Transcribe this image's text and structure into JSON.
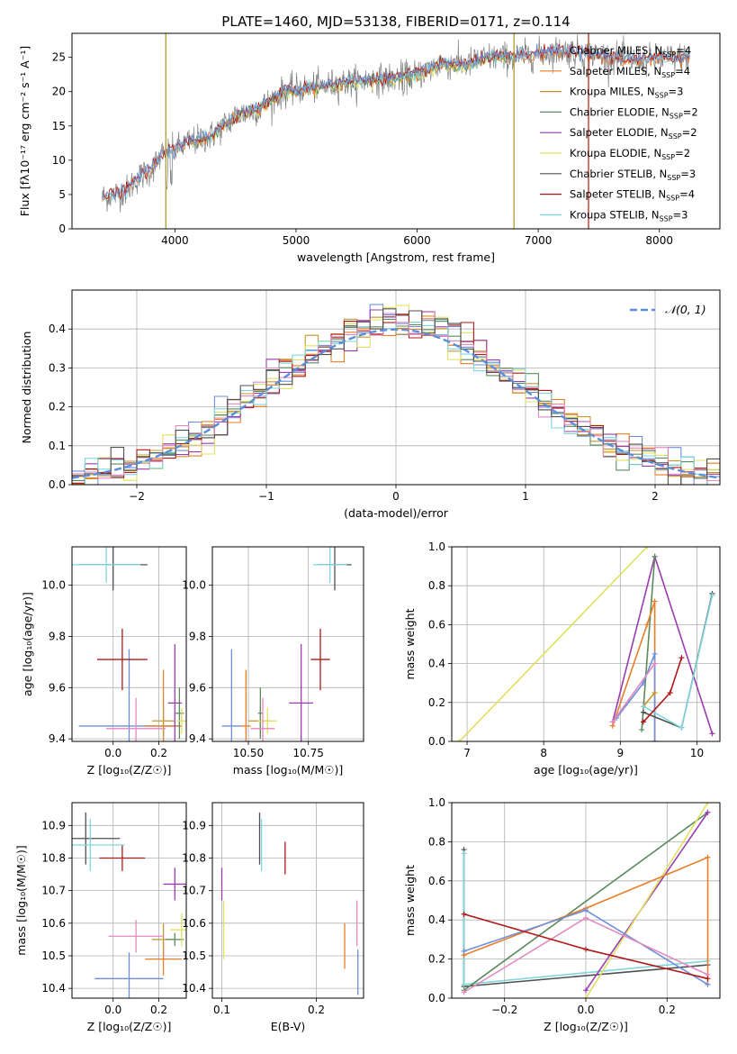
{
  "title": "PLATE=1460, MJD=53138, FIBERID=0171, z=0.114",
  "colors": {
    "Chabrier MILES": "#6f8fdd",
    "Salpeter MILES": "#e87d2a",
    "Kroupa MILES": "#c8952a",
    "Chabrier ELODIE": "#5b8b5d",
    "Salpeter ELODIE": "#9a3cb0",
    "Kroupa ELODIE": "#e0e060",
    "Chabrier STELIB": "#505050",
    "Salpeter STELIB": "#b01818",
    "Kroupa STELIB": "#7fd6dd",
    "gaussian": "#5b8fd9",
    "pink": "#e28ac0"
  },
  "chart_data": [
    {
      "type": "line",
      "name": "spectrum",
      "xlabel": "wavelength [Angstrom, rest frame]",
      "ylabel": "Flux [fλ10⁻¹⁷ erg cm⁻² s⁻¹ A⁻¹]",
      "xlim": [
        3150,
        8500
      ],
      "ylim": [
        0,
        28.5
      ],
      "xticks": [
        4000,
        5000,
        6000,
        7000,
        8000
      ],
      "yticks": [
        0,
        5,
        10,
        15,
        20,
        25
      ],
      "continuum": [
        [
          3400,
          4.6
        ],
        [
          3500,
          5
        ],
        [
          3600,
          5.6
        ],
        [
          3700,
          7.5
        ],
        [
          3800,
          8.5
        ],
        [
          3900,
          11
        ],
        [
          4000,
          11.5
        ],
        [
          4100,
          12.5
        ],
        [
          4300,
          13.5
        ],
        [
          4500,
          16.5
        ],
        [
          4700,
          17.5
        ],
        [
          4900,
          20
        ],
        [
          5100,
          20.5
        ],
        [
          5300,
          21
        ],
        [
          5500,
          21.5
        ],
        [
          5800,
          22
        ],
        [
          6000,
          22.5
        ],
        [
          6200,
          24
        ],
        [
          6400,
          24
        ],
        [
          6600,
          25
        ],
        [
          6800,
          25
        ],
        [
          7000,
          25.5
        ],
        [
          7200,
          26
        ],
        [
          7400,
          25.5
        ],
        [
          7600,
          25
        ],
        [
          7800,
          24.5
        ],
        [
          8000,
          24.8
        ],
        [
          8250,
          25
        ]
      ],
      "series": [
        {
          "name": "Chabrier MILES",
          "label": "Chabrier MILES, N",
          "sub": "SSP",
          "n": "=4"
        },
        {
          "name": "Salpeter MILES",
          "label": "Salpeter MILES, N",
          "sub": "SSP",
          "n": "=4"
        },
        {
          "name": "Kroupa MILES",
          "label": "Kroupa MILES, N",
          "sub": "SSP",
          "n": "=3"
        },
        {
          "name": "Chabrier ELODIE",
          "label": "Chabrier ELODIE, N",
          "sub": "SSP",
          "n": "=2"
        },
        {
          "name": "Salpeter ELODIE",
          "label": "Salpeter ELODIE, N",
          "sub": "SSP",
          "n": "=2"
        },
        {
          "name": "Kroupa ELODIE",
          "label": "Kroupa ELODIE, N",
          "sub": "SSP",
          "n": "=2"
        },
        {
          "name": "Chabrier STELIB",
          "label": "Chabrier STELIB, N",
          "sub": "SSP",
          "n": "=3"
        },
        {
          "name": "Salpeter STELIB",
          "label": "Salpeter STELIB, N",
          "sub": "SSP",
          "n": "=4"
        },
        {
          "name": "Kroupa STELIB",
          "label": "Kroupa STELIB, N",
          "sub": "SSP",
          "n": "=3"
        }
      ]
    },
    {
      "type": "area",
      "name": "residual histogram",
      "xlabel": "(data-model)/error",
      "ylabel": "Normed distribution",
      "xlim": [
        -2.5,
        2.5
      ],
      "ylim": [
        0,
        0.5
      ],
      "xticks": [
        -2,
        -1,
        0,
        1,
        2
      ],
      "yticks": [
        0.0,
        0.1,
        0.2,
        0.3,
        0.4
      ],
      "bin_width": 0.1,
      "legend": "𝒩(0, 1)",
      "gaussian": {
        "mean": 0,
        "sigma": 1
      }
    },
    {
      "type": "scatter",
      "name": "age vs Z",
      "xlabel": "Z [log₁₀(Z/Z☉)]",
      "ylabel": "age  [log₁₀(age/yr)]",
      "xlim": [
        -0.18,
        0.32
      ],
      "ylim": [
        9.39,
        10.15
      ],
      "xticks": [
        0.0,
        0.2
      ],
      "yticks": [
        9.4,
        9.6,
        9.8,
        10.0
      ],
      "points": [
        {
          "series": "Chabrier MILES",
          "x": 0.07,
          "y": 9.45,
          "xerr": 0.22,
          "yerr": 0.3
        },
        {
          "series": "Salpeter MILES",
          "x": 0.22,
          "y": 9.45,
          "xerr": 0.08,
          "yerr": 0.22
        },
        {
          "series": "Kroupa MILES",
          "x": 0.22,
          "y": 9.47,
          "xerr": 0.05,
          "yerr": 0.06
        },
        {
          "series": "Chabrier ELODIE",
          "x": 0.29,
          "y": 9.5,
          "xerr": 0.02,
          "yerr": 0.1
        },
        {
          "series": "Salpeter ELODIE",
          "x": 0.27,
          "y": 9.54,
          "xerr": 0.03,
          "yerr": 0.23
        },
        {
          "series": "Kroupa ELODIE",
          "x": 0.3,
          "y": 9.47,
          "xerr": 0.02,
          "yerr": 0.05
        },
        {
          "series": "Chabrier STELIB",
          "x": 0.0,
          "y": 10.08,
          "xerr": 0.15,
          "yerr": 0.1
        },
        {
          "series": "Salpeter STELIB",
          "x": 0.04,
          "y": 9.71,
          "xerr": 0.11,
          "yerr": 0.12
        },
        {
          "series": "Kroupa STELIB",
          "x": -0.03,
          "y": 10.08,
          "xerr": 0.15,
          "yerr": 0.07
        },
        {
          "series": "pink",
          "x": 0.1,
          "y": 9.44,
          "xerr": 0.13,
          "yerr": 0.12
        }
      ]
    },
    {
      "type": "scatter",
      "name": "age vs mass",
      "xlabel": "mass [log₁₀(M/M☉)]",
      "ylabel": "",
      "xlim": [
        10.35,
        10.98
      ],
      "ylim": [
        9.39,
        10.15
      ],
      "xticks": [
        10.5,
        10.75
      ],
      "yticks": [
        9.4,
        9.6,
        9.8,
        10.0
      ],
      "points": [
        {
          "series": "Chabrier MILES",
          "x": 10.43,
          "y": 9.45,
          "xerr": 0.04,
          "yerr": 0.3
        },
        {
          "series": "Salpeter MILES",
          "x": 10.49,
          "y": 9.45,
          "xerr": 0.02,
          "yerr": 0.22
        },
        {
          "series": "Kroupa MILES",
          "x": 10.55,
          "y": 9.47,
          "xerr": 0.05,
          "yerr": 0.06
        },
        {
          "series": "Chabrier ELODIE",
          "x": 10.55,
          "y": 9.5,
          "xerr": 0.01,
          "yerr": 0.1
        },
        {
          "series": "Salpeter ELODIE",
          "x": 10.72,
          "y": 9.54,
          "xerr": 0.05,
          "yerr": 0.23
        },
        {
          "series": "Kroupa ELODIE",
          "x": 10.58,
          "y": 9.47,
          "xerr": 0.04,
          "yerr": 0.05
        },
        {
          "series": "Chabrier STELIB",
          "x": 10.86,
          "y": 10.08,
          "xerr": 0.07,
          "yerr": 0.1
        },
        {
          "series": "Salpeter STELIB",
          "x": 10.8,
          "y": 9.71,
          "xerr": 0.04,
          "yerr": 0.12
        },
        {
          "series": "Kroupa STELIB",
          "x": 10.84,
          "y": 10.08,
          "xerr": 0.07,
          "yerr": 0.07
        },
        {
          "series": "pink",
          "x": 10.56,
          "y": 9.44,
          "xerr": 0.05,
          "yerr": 0.12
        }
      ]
    },
    {
      "type": "line",
      "name": "mass weight vs age",
      "xlabel": "age  [log₁₀(age/yr)]",
      "ylabel": "mass weight",
      "xlim": [
        6.8,
        10.3
      ],
      "ylim": [
        0,
        1
      ],
      "xticks": [
        7,
        8,
        9,
        10
      ],
      "yticks": [
        0.0,
        0.2,
        0.4,
        0.6,
        0.8,
        1.0
      ],
      "series": [
        {
          "name": "Kroupa ELODIE",
          "x": [
            6.9,
            9.35
          ],
          "y": [
            0.0,
            1.0
          ]
        },
        {
          "name": "Salpeter ELODIE",
          "x": [
            8.9,
            9.45,
            10.2
          ],
          "y": [
            0.1,
            0.95,
            0.04
          ]
        },
        {
          "name": "Chabrier ELODIE",
          "x": [
            9.28,
            9.45
          ],
          "y": [
            0.06,
            0.95
          ]
        },
        {
          "name": "Salpeter MILES",
          "x": [
            8.9,
            9.35,
            9.45,
            9.45
          ],
          "y": [
            0.08,
            0.6,
            0.72,
            0.0
          ]
        },
        {
          "name": "Chabrier MILES",
          "x": [
            8.95,
            9.3,
            9.45,
            9.45
          ],
          "y": [
            0.12,
            0.3,
            0.45,
            0.0
          ]
        },
        {
          "name": "pink",
          "x": [
            8.9,
            9.45
          ],
          "y": [
            0.1,
            0.4
          ]
        },
        {
          "name": "Kroupa MILES",
          "x": [
            9.3,
            9.45
          ],
          "y": [
            0.18,
            0.25
          ]
        },
        {
          "name": "Chabrier STELIB",
          "x": [
            9.3,
            9.8,
            10.2
          ],
          "y": [
            0.15,
            0.07,
            0.76
          ]
        },
        {
          "name": "Kroupa STELIB",
          "x": [
            9.3,
            9.8,
            10.2
          ],
          "y": [
            0.18,
            0.07,
            0.75
          ]
        },
        {
          "name": "Salpeter STELIB",
          "x": [
            9.3,
            9.65,
            9.8
          ],
          "y": [
            0.1,
            0.25,
            0.43
          ]
        }
      ]
    },
    {
      "type": "scatter",
      "name": "mass vs Z",
      "xlabel": "Z [log₁₀(Z/Z☉)]",
      "ylabel": "mass [log₁₀(M/M☉)]",
      "xlim": [
        -0.18,
        0.32
      ],
      "ylim": [
        10.37,
        10.97
      ],
      "xticks": [
        0.0,
        0.2
      ],
      "yticks": [
        10.4,
        10.5,
        10.6,
        10.7,
        10.8,
        10.9
      ],
      "points": [
        {
          "series": "Chabrier MILES",
          "x": 0.07,
          "y": 10.43,
          "xerr": 0.15,
          "yerr": 0.08
        },
        {
          "series": "Salpeter MILES",
          "x": 0.22,
          "y": 10.49,
          "xerr": 0.08,
          "yerr": 0.05
        },
        {
          "series": "Kroupa MILES",
          "x": 0.22,
          "y": 10.55,
          "xerr": 0.05,
          "yerr": 0.05
        },
        {
          "series": "Chabrier ELODIE",
          "x": 0.27,
          "y": 10.55,
          "xerr": 0.04,
          "yerr": 0.02
        },
        {
          "series": "Salpeter ELODIE",
          "x": 0.27,
          "y": 10.72,
          "xerr": 0.05,
          "yerr": 0.05
        },
        {
          "series": "Kroupa ELODIE",
          "x": 0.3,
          "y": 10.58,
          "xerr": 0.05,
          "yerr": 0.05
        },
        {
          "series": "Chabrier STELIB",
          "x": -0.12,
          "y": 10.86,
          "xerr": 0.15,
          "yerr": 0.08
        },
        {
          "series": "Salpeter STELIB",
          "x": 0.04,
          "y": 10.8,
          "xerr": 0.1,
          "yerr": 0.04
        },
        {
          "series": "Kroupa STELIB",
          "x": -0.1,
          "y": 10.84,
          "xerr": 0.15,
          "yerr": 0.08
        },
        {
          "series": "pink",
          "x": 0.1,
          "y": 10.56,
          "xerr": 0.12,
          "yerr": 0.05
        }
      ]
    },
    {
      "type": "scatter",
      "name": "mass vs E(B-V)",
      "xlabel": "E(B-V)",
      "ylabel": "",
      "xlim": [
        0.09,
        0.25
      ],
      "ylim": [
        10.37,
        10.97
      ],
      "xticks": [
        0.1,
        0.2
      ],
      "yticks": [
        10.4,
        10.5,
        10.6,
        10.7,
        10.8,
        10.9
      ],
      "points": [
        {
          "series": "Chabrier MILES",
          "x": 0.244,
          "y": 10.45,
          "xerr": 0,
          "yerr": 0.07
        },
        {
          "series": "Salpeter MILES",
          "x": 0.23,
          "y": 10.53,
          "xerr": 0,
          "yerr": 0.07
        },
        {
          "series": "Kroupa ELODIE",
          "x": 0.102,
          "y": 10.58,
          "xerr": 0,
          "yerr": 0.09
        },
        {
          "series": "Salpeter ELODIE",
          "x": 0.1,
          "y": 10.72,
          "xerr": 0,
          "yerr": 0.05
        },
        {
          "series": "Chabrier STELIB",
          "x": 0.14,
          "y": 10.86,
          "xerr": 0,
          "yerr": 0.08
        },
        {
          "series": "Kroupa STELIB",
          "x": 0.142,
          "y": 10.84,
          "xerr": 0,
          "yerr": 0.08
        },
        {
          "series": "Salpeter STELIB",
          "x": 0.167,
          "y": 10.8,
          "xerr": 0,
          "yerr": 0.05
        },
        {
          "series": "pink",
          "x": 0.243,
          "y": 10.6,
          "xerr": 0,
          "yerr": 0.07
        }
      ]
    },
    {
      "type": "line",
      "name": "mass weight vs Z",
      "xlabel": "Z [log₁₀(Z/Z☉)]",
      "ylabel": "mass weight",
      "xlim": [
        -0.33,
        0.33
      ],
      "ylim": [
        0,
        1
      ],
      "xticks": [
        -0.2,
        0.0,
        0.2
      ],
      "yticks": [
        0.0,
        0.2,
        0.4,
        0.6,
        0.8,
        1.0
      ],
      "series": [
        {
          "name": "Chabrier STELIB",
          "x": [
            -0.3,
            -0.3,
            0.3
          ],
          "y": [
            0.76,
            0.06,
            0.17
          ]
        },
        {
          "name": "Kroupa STELIB",
          "x": [
            -0.3,
            -0.3,
            0.3
          ],
          "y": [
            0.74,
            0.07,
            0.19
          ]
        },
        {
          "name": "Chabrier ELODIE",
          "x": [
            -0.3,
            0.3
          ],
          "y": [
            0.04,
            0.95
          ]
        },
        {
          "name": "Salpeter ELODIE",
          "x": [
            0.0,
            0.3
          ],
          "y": [
            0.04,
            0.95
          ]
        },
        {
          "name": "Kroupa ELODIE",
          "x": [
            0.0,
            0.3
          ],
          "y": [
            0.0,
            1.0
          ]
        },
        {
          "name": "Salpeter MILES",
          "x": [
            -0.3,
            0.0,
            0.3,
            0.3
          ],
          "y": [
            0.22,
            0.46,
            0.72,
            0.07
          ]
        },
        {
          "name": "Chabrier MILES",
          "x": [
            -0.3,
            0.0,
            0.3
          ],
          "y": [
            0.24,
            0.45,
            0.07
          ]
        },
        {
          "name": "pink",
          "x": [
            -0.3,
            0.0,
            0.3
          ],
          "y": [
            0.03,
            0.41,
            0.12
          ]
        },
        {
          "name": "Salpeter STELIB",
          "x": [
            -0.3,
            0.0,
            0.3
          ],
          "y": [
            0.43,
            0.25,
            0.1
          ]
        }
      ]
    }
  ]
}
